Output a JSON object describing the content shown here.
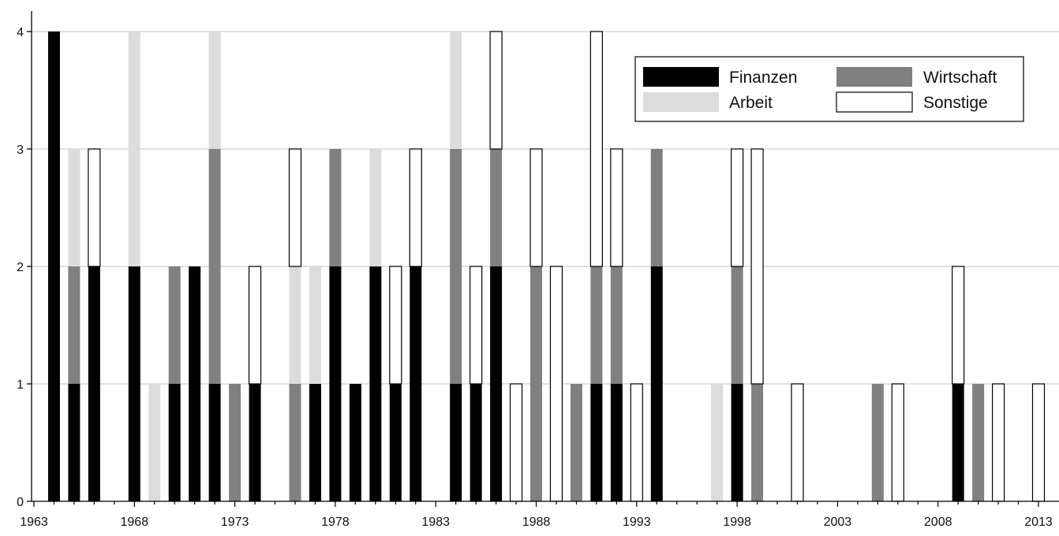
{
  "chart_data": {
    "type": "bar",
    "stacked": true,
    "title": "",
    "xlabel": "",
    "ylabel": "",
    "ylim": [
      0,
      4
    ],
    "y_ticks": [
      0,
      1,
      2,
      3,
      4
    ],
    "x_ticks": [
      1963,
      1968,
      1973,
      1978,
      1983,
      1988,
      1993,
      1998,
      2003,
      2008,
      2013
    ],
    "xlim": [
      1962,
      2013
    ],
    "grid": true,
    "legend_position": "top-right",
    "x": [
      1964,
      1965,
      1966,
      1968,
      1969,
      1970,
      1971,
      1972,
      1973,
      1974,
      1976,
      1977,
      1978,
      1979,
      1980,
      1981,
      1982,
      1984,
      1985,
      1986,
      1987,
      1988,
      1989,
      1990,
      1991,
      1992,
      1993,
      1994,
      1997,
      1998,
      1999,
      2001,
      2005,
      2006,
      2009,
      2010,
      2011,
      2013
    ],
    "series": [
      {
        "name": "Finanzen",
        "color": "#000000",
        "values": [
          4,
          1,
          2,
          2,
          0,
          1,
          2,
          1,
          0,
          1,
          0,
          1,
          2,
          1,
          2,
          1,
          2,
          1,
          1,
          2,
          0,
          0,
          0,
          0,
          1,
          1,
          0,
          2,
          0,
          1,
          0,
          0,
          0,
          0,
          1,
          0,
          0,
          0
        ]
      },
      {
        "name": "Wirtschaft",
        "color": "#808080",
        "values": [
          0,
          1,
          0,
          0,
          0,
          1,
          0,
          2,
          1,
          0,
          1,
          0,
          1,
          0,
          0,
          0,
          0,
          2,
          0,
          1,
          0,
          2,
          0,
          1,
          1,
          1,
          0,
          1,
          0,
          1,
          1,
          0,
          1,
          0,
          0,
          1,
          0,
          0
        ]
      },
      {
        "name": "Arbeit",
        "color": "#dcdcdc",
        "values": [
          0,
          1,
          0,
          2,
          1,
          0,
          0,
          1,
          0,
          0,
          1,
          1,
          0,
          0,
          1,
          0,
          0,
          1,
          0,
          0,
          0,
          0,
          0,
          0,
          0,
          0,
          0,
          0,
          1,
          0,
          0,
          0,
          0,
          0,
          0,
          0,
          0,
          0
        ]
      },
      {
        "name": "Sonstige",
        "color": "#ffffff",
        "values": [
          0,
          0,
          1,
          0,
          0,
          0,
          0,
          0,
          0,
          1,
          1,
          0,
          0,
          0,
          0,
          1,
          1,
          0,
          1,
          1,
          1,
          1,
          2,
          0,
          2,
          1,
          1,
          0,
          0,
          1,
          2,
          1,
          0,
          1,
          1,
          0,
          1,
          1
        ]
      }
    ]
  }
}
